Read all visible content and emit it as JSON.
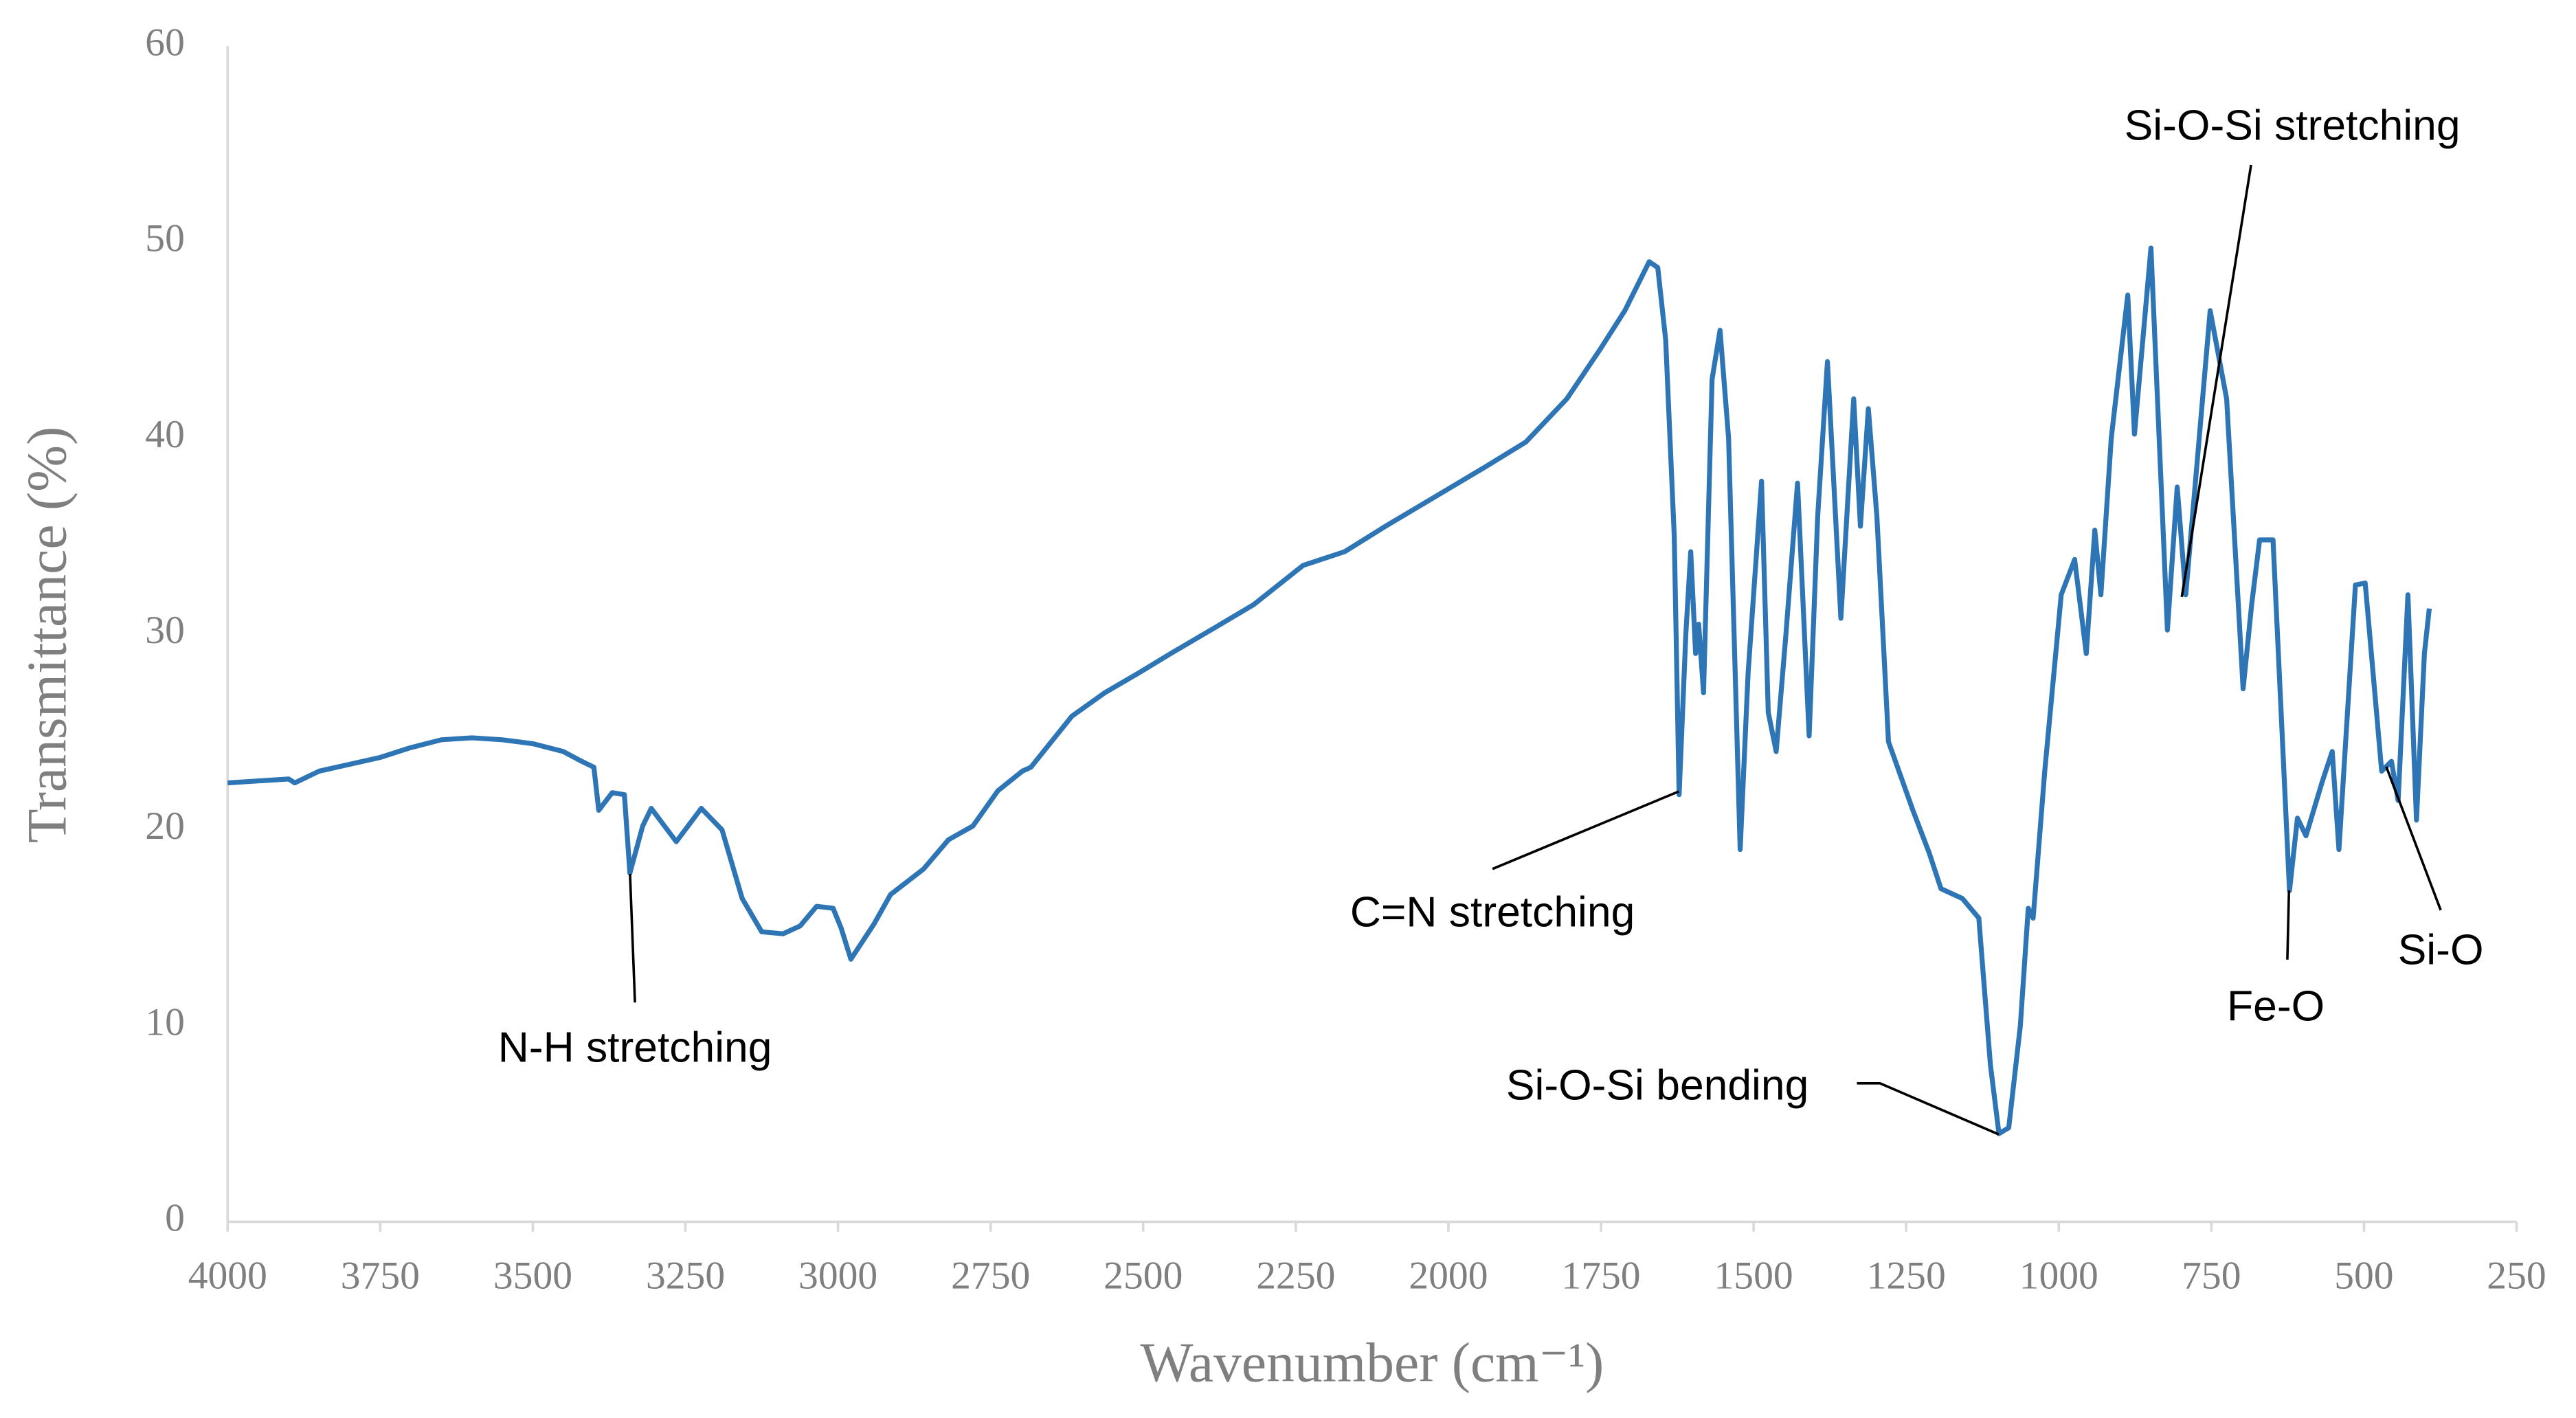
{
  "chart_data": {
    "type": "line",
    "x_label": "Wavenumber (cm⁻¹)",
    "y_label": "Transmittance (%)",
    "xlim": [
      4000,
      250
    ],
    "ylim": [
      0,
      60
    ],
    "xticks": [
      4000,
      3750,
      3500,
      3250,
      3000,
      2750,
      2500,
      2250,
      2000,
      1750,
      1500,
      1250,
      1000,
      750,
      500,
      250
    ],
    "yticks": [
      0,
      10,
      20,
      30,
      40,
      50,
      60
    ],
    "grid": false,
    "color": "#2e75b6",
    "x": [
      4000,
      3950,
      3900,
      3890,
      3850,
      3750,
      3700,
      3650,
      3600,
      3550,
      3500,
      3450,
      3420,
      3400,
      3392,
      3370,
      3350,
      3341,
      3320,
      3306,
      3265,
      3224,
      3190,
      3157,
      3125,
      3090,
      3062,
      3035,
      3008,
      2995,
      2979,
      2941,
      2914,
      2860,
      2819,
      2779,
      2738,
      2698,
      2684,
      2617,
      2563,
      2508,
      2455,
      2373,
      2319,
      2238,
      2170,
      2103,
      2022,
      1941,
      1873,
      1806,
      1752,
      1711,
      1671,
      1657,
      1644,
      1630,
      1622,
      1611,
      1603,
      1595,
      1590,
      1582,
      1568,
      1555,
      1541,
      1522,
      1509,
      1487,
      1476,
      1463,
      1447,
      1428,
      1409,
      1395,
      1379,
      1357,
      1336,
      1325,
      1312,
      1298,
      1279,
      1239,
      1212,
      1193,
      1158,
      1131,
      1112,
      1098,
      1082,
      1063,
      1050,
      1042,
      1023,
      996,
      974,
      955,
      941,
      931,
      914,
      887,
      876,
      849,
      822,
      806,
      792,
      752,
      725,
      698,
      684,
      671,
      649,
      622,
      609,
      595,
      568,
      552,
      541,
      514,
      498,
      471,
      455,
      444,
      428,
      414,
      401,
      393
    ],
    "values": [
      22.4,
      22.5,
      22.6,
      22.4,
      23.0,
      23.7,
      24.2,
      24.6,
      24.7,
      24.6,
      24.4,
      24.0,
      23.5,
      23.2,
      21.0,
      21.9,
      21.8,
      17.8,
      20.2,
      21.1,
      19.4,
      21.1,
      20.0,
      16.5,
      14.8,
      14.7,
      15.1,
      16.1,
      16.0,
      15.0,
      13.4,
      15.2,
      16.7,
      18.0,
      19.5,
      20.2,
      22.0,
      23.0,
      23.2,
      25.8,
      27.0,
      28.0,
      29.0,
      30.5,
      31.5,
      33.5,
      34.2,
      35.5,
      37.0,
      38.5,
      39.8,
      42.0,
      44.5,
      46.5,
      49.0,
      48.7,
      45.0,
      35.0,
      21.8,
      30.0,
      34.2,
      29.0,
      30.5,
      27.0,
      43.0,
      45.5,
      40.0,
      19.0,
      28.0,
      37.8,
      26.0,
      24.0,
      30.0,
      37.7,
      24.8,
      36.0,
      43.9,
      30.8,
      42.0,
      35.5,
      41.5,
      36.0,
      24.5,
      21.0,
      18.8,
      17.0,
      16.5,
      15.5,
      8.0,
      4.5,
      4.8,
      10.0,
      16.0,
      15.5,
      23.0,
      32.0,
      33.8,
      29.0,
      35.3,
      32.0,
      40.0,
      47.3,
      40.2,
      49.7,
      30.2,
      37.5,
      32.0,
      46.5,
      42.0,
      27.2,
      31.5,
      34.8,
      34.8,
      16.9,
      20.6,
      19.7,
      22.5,
      24.0,
      19.0,
      32.5,
      32.6,
      23.0,
      23.5,
      21.5,
      32.0,
      20.5,
      29.0,
      31.3
    ],
    "annotations": [
      "N-H stretching",
      "C=N stretching",
      "Si-O-Si bending",
      "Si-O-Si stretching",
      "Fe-O",
      "Si-O"
    ]
  }
}
